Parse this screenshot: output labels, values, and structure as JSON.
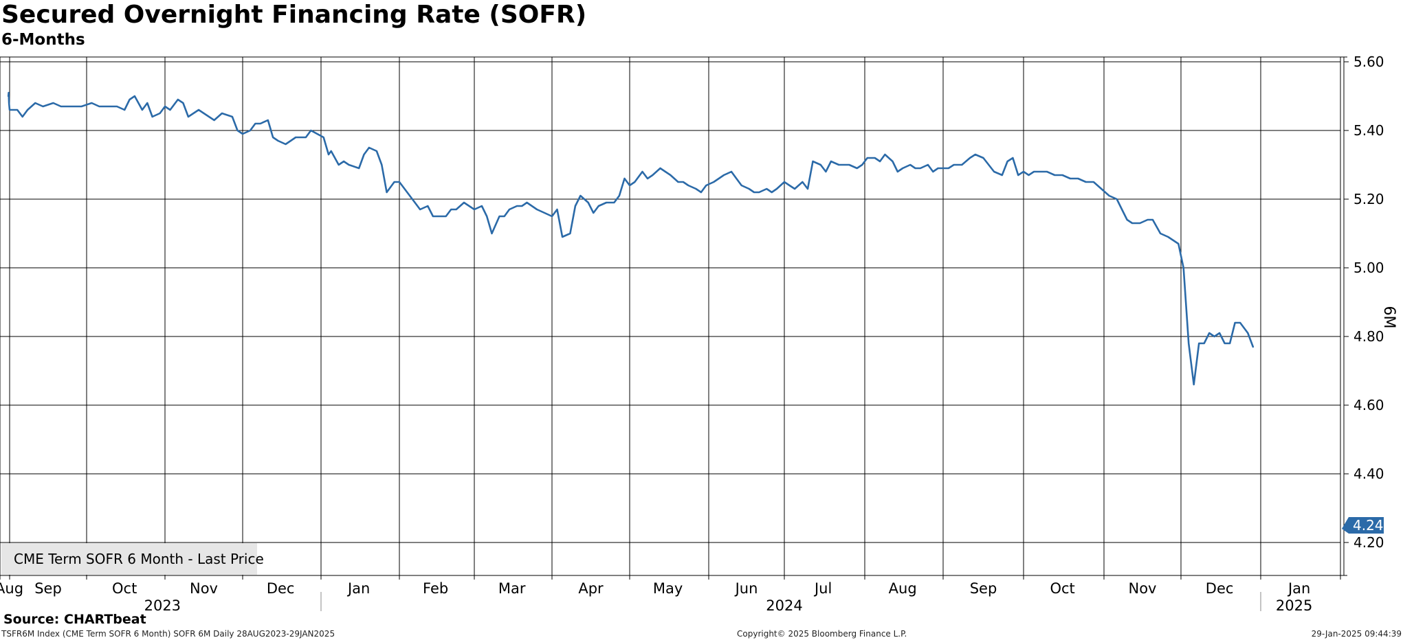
{
  "header": {
    "title": "Secured Overnight Financing Rate (SOFR)",
    "subtitle": "6-Months"
  },
  "legend": {
    "label": "CME Term SOFR 6 Month - Last Price",
    "color": "#2b6aa8"
  },
  "last_price_badge": "4.24",
  "footer": {
    "source": "Source: CHARTbeat",
    "index_info": "TSFR6M Index (CME Term SOFR 6 Month) SOFR 6M  Daily 28AUG2023-29JAN2025",
    "copyright": "Copyright© 2025 Bloomberg Finance L.P.",
    "timestamp": "29-Jan-2025 09:44:39"
  },
  "chart_data": {
    "type": "line",
    "title": "Secured Overnight Financing Rate (SOFR)",
    "subtitle": "6-Months",
    "ylabel": "6M",
    "ylim": [
      4.15,
      5.62
    ],
    "y_ticks": [
      "4.20",
      "4.40",
      "4.60",
      "4.80",
      "5.00",
      "5.20",
      "5.40",
      "5.60"
    ],
    "x_range": [
      "2023-08-28",
      "2025-01-29"
    ],
    "x_month_ticks": [
      "2023-08-01",
      "2023-09-01",
      "2023-10-01",
      "2023-11-01",
      "2023-12-01",
      "2024-01-01",
      "2024-02-01",
      "2024-03-01",
      "2024-04-01",
      "2024-05-01",
      "2024-06-01",
      "2024-07-01",
      "2024-08-01",
      "2024-09-01",
      "2024-10-01",
      "2024-11-01",
      "2024-12-01",
      "2025-01-01",
      "2025-02-01"
    ],
    "x_month_labels": [
      {
        "label": "Aug",
        "date": "2023-08-31"
      },
      {
        "label": "Sep",
        "date": "2023-09-16"
      },
      {
        "label": "Oct",
        "date": "2023-10-16"
      },
      {
        "label": "Nov",
        "date": "2023-11-16"
      },
      {
        "label": "Dec",
        "date": "2023-12-16"
      },
      {
        "label": "Jan",
        "date": "2024-01-16"
      },
      {
        "label": "Feb",
        "date": "2024-02-15"
      },
      {
        "label": "Mar",
        "date": "2024-03-16"
      },
      {
        "label": "Apr",
        "date": "2024-04-16"
      },
      {
        "label": "May",
        "date": "2024-05-16"
      },
      {
        "label": "Jun",
        "date": "2024-06-16"
      },
      {
        "label": "Jul",
        "date": "2024-07-16"
      },
      {
        "label": "Aug",
        "date": "2024-08-16"
      },
      {
        "label": "Sep",
        "date": "2024-09-16"
      },
      {
        "label": "Oct",
        "date": "2024-10-16"
      },
      {
        "label": "Nov",
        "date": "2024-11-16"
      },
      {
        "label": "Dec",
        "date": "2024-12-16"
      },
      {
        "label": "Jan",
        "date": "2025-01-16"
      }
    ],
    "year_labels": [
      {
        "label": "2023",
        "date": "2023-10-31"
      },
      {
        "label": "2024",
        "date": "2024-07-01"
      },
      {
        "label": "2025",
        "date": "2025-01-14"
      }
    ],
    "year_dividers": [
      "2024-01-01",
      "2025-01-01"
    ],
    "grid": true,
    "legend_position": "bottom-left",
    "series": [
      {
        "name": "CME Term SOFR 6 Month - Last Price",
        "color": "#2b6aa8",
        "points": [
          [
            "2023-08-28",
            5.5
          ],
          [
            "2023-08-29",
            5.51
          ],
          [
            "2023-08-30",
            5.48
          ],
          [
            "2023-09-01",
            5.46
          ],
          [
            "2023-09-04",
            5.46
          ],
          [
            "2023-09-06",
            5.44
          ],
          [
            "2023-09-08",
            5.46
          ],
          [
            "2023-09-11",
            5.48
          ],
          [
            "2023-09-14",
            5.47
          ],
          [
            "2023-09-18",
            5.48
          ],
          [
            "2023-09-21",
            5.47
          ],
          [
            "2023-09-25",
            5.47
          ],
          [
            "2023-09-29",
            5.47
          ],
          [
            "2023-10-03",
            5.48
          ],
          [
            "2023-10-06",
            5.47
          ],
          [
            "2023-10-10",
            5.47
          ],
          [
            "2023-10-13",
            5.47
          ],
          [
            "2023-10-16",
            5.46
          ],
          [
            "2023-10-18",
            5.49
          ],
          [
            "2023-10-20",
            5.5
          ],
          [
            "2023-10-23",
            5.46
          ],
          [
            "2023-10-25",
            5.48
          ],
          [
            "2023-10-27",
            5.44
          ],
          [
            "2023-10-30",
            5.45
          ],
          [
            "2023-11-01",
            5.47
          ],
          [
            "2023-11-03",
            5.46
          ],
          [
            "2023-11-06",
            5.49
          ],
          [
            "2023-11-08",
            5.48
          ],
          [
            "2023-11-10",
            5.44
          ],
          [
            "2023-11-14",
            5.46
          ],
          [
            "2023-11-16",
            5.45
          ],
          [
            "2023-11-20",
            5.43
          ],
          [
            "2023-11-23",
            5.45
          ],
          [
            "2023-11-27",
            5.44
          ],
          [
            "2023-11-29",
            5.4
          ],
          [
            "2023-12-01",
            5.39
          ],
          [
            "2023-12-04",
            5.4
          ],
          [
            "2023-12-06",
            5.42
          ],
          [
            "2023-12-08",
            5.42
          ],
          [
            "2023-12-11",
            5.43
          ],
          [
            "2023-12-13",
            5.38
          ],
          [
            "2023-12-15",
            5.37
          ],
          [
            "2023-12-18",
            5.36
          ],
          [
            "2023-12-20",
            5.37
          ],
          [
            "2023-12-22",
            5.38
          ],
          [
            "2023-12-26",
            5.38
          ],
          [
            "2023-12-28",
            5.4
          ],
          [
            "2024-01-02",
            5.38
          ],
          [
            "2024-01-04",
            5.33
          ],
          [
            "2024-01-05",
            5.34
          ],
          [
            "2024-01-08",
            5.3
          ],
          [
            "2024-01-10",
            5.31
          ],
          [
            "2024-01-12",
            5.3
          ],
          [
            "2024-01-16",
            5.29
          ],
          [
            "2024-01-18",
            5.33
          ],
          [
            "2024-01-20",
            5.35
          ],
          [
            "2024-01-23",
            5.34
          ],
          [
            "2024-01-25",
            5.3
          ],
          [
            "2024-01-27",
            5.22
          ],
          [
            "2024-01-30",
            5.25
          ],
          [
            "2024-02-01",
            5.25
          ],
          [
            "2024-02-04",
            5.22
          ],
          [
            "2024-02-07",
            5.19
          ],
          [
            "2024-02-09",
            5.17
          ],
          [
            "2024-02-12",
            5.18
          ],
          [
            "2024-02-14",
            5.15
          ],
          [
            "2024-02-16",
            5.15
          ],
          [
            "2024-02-19",
            5.15
          ],
          [
            "2024-02-21",
            5.17
          ],
          [
            "2024-02-23",
            5.17
          ],
          [
            "2024-02-26",
            5.19
          ],
          [
            "2024-02-28",
            5.18
          ],
          [
            "2024-03-01",
            5.17
          ],
          [
            "2024-03-04",
            5.18
          ],
          [
            "2024-03-06",
            5.15
          ],
          [
            "2024-03-08",
            5.1
          ],
          [
            "2024-03-11",
            5.15
          ],
          [
            "2024-03-13",
            5.15
          ],
          [
            "2024-03-15",
            5.17
          ],
          [
            "2024-03-18",
            5.18
          ],
          [
            "2024-03-20",
            5.18
          ],
          [
            "2024-03-22",
            5.19
          ],
          [
            "2024-03-26",
            5.17
          ],
          [
            "2024-03-29",
            5.16
          ],
          [
            "2024-04-01",
            5.15
          ],
          [
            "2024-04-03",
            5.17
          ],
          [
            "2024-04-05",
            5.09
          ],
          [
            "2024-04-08",
            5.1
          ],
          [
            "2024-04-10",
            5.18
          ],
          [
            "2024-04-12",
            5.21
          ],
          [
            "2024-04-15",
            5.19
          ],
          [
            "2024-04-17",
            5.16
          ],
          [
            "2024-04-19",
            5.18
          ],
          [
            "2024-04-22",
            5.19
          ],
          [
            "2024-04-25",
            5.19
          ],
          [
            "2024-04-27",
            5.21
          ],
          [
            "2024-04-29",
            5.26
          ],
          [
            "2024-05-01",
            5.24
          ],
          [
            "2024-05-03",
            5.25
          ],
          [
            "2024-05-06",
            5.28
          ],
          [
            "2024-05-08",
            5.26
          ],
          [
            "2024-05-10",
            5.27
          ],
          [
            "2024-05-13",
            5.29
          ],
          [
            "2024-05-15",
            5.28
          ],
          [
            "2024-05-17",
            5.27
          ],
          [
            "2024-05-20",
            5.25
          ],
          [
            "2024-05-22",
            5.25
          ],
          [
            "2024-05-24",
            5.24
          ],
          [
            "2024-05-27",
            5.23
          ],
          [
            "2024-05-29",
            5.22
          ],
          [
            "2024-05-31",
            5.24
          ],
          [
            "2024-06-03",
            5.25
          ],
          [
            "2024-06-05",
            5.26
          ],
          [
            "2024-06-07",
            5.27
          ],
          [
            "2024-06-10",
            5.28
          ],
          [
            "2024-06-12",
            5.26
          ],
          [
            "2024-06-14",
            5.24
          ],
          [
            "2024-06-17",
            5.23
          ],
          [
            "2024-06-19",
            5.22
          ],
          [
            "2024-06-21",
            5.22
          ],
          [
            "2024-06-24",
            5.23
          ],
          [
            "2024-06-26",
            5.22
          ],
          [
            "2024-06-28",
            5.23
          ],
          [
            "2024-07-01",
            5.25
          ],
          [
            "2024-07-03",
            5.24
          ],
          [
            "2024-07-05",
            5.23
          ],
          [
            "2024-07-08",
            5.25
          ],
          [
            "2024-07-10",
            5.23
          ],
          [
            "2024-07-12",
            5.31
          ],
          [
            "2024-07-15",
            5.3
          ],
          [
            "2024-07-17",
            5.28
          ],
          [
            "2024-07-19",
            5.31
          ],
          [
            "2024-07-22",
            5.3
          ],
          [
            "2024-07-24",
            5.3
          ],
          [
            "2024-07-26",
            5.3
          ],
          [
            "2024-07-29",
            5.29
          ],
          [
            "2024-07-31",
            5.3
          ],
          [
            "2024-08-02",
            5.32
          ],
          [
            "2024-08-05",
            5.32
          ],
          [
            "2024-08-07",
            5.31
          ],
          [
            "2024-08-09",
            5.33
          ],
          [
            "2024-08-12",
            5.31
          ],
          [
            "2024-08-14",
            5.28
          ],
          [
            "2024-08-16",
            5.29
          ],
          [
            "2024-08-19",
            5.3
          ],
          [
            "2024-08-21",
            5.29
          ],
          [
            "2024-08-23",
            5.29
          ],
          [
            "2024-08-26",
            5.3
          ],
          [
            "2024-08-28",
            5.28
          ],
          [
            "2024-08-30",
            5.29
          ],
          [
            "2024-09-03",
            5.29
          ],
          [
            "2024-09-05",
            5.3
          ],
          [
            "2024-09-08",
            5.3
          ],
          [
            "2024-09-11",
            5.32
          ],
          [
            "2024-09-13",
            5.33
          ],
          [
            "2024-09-16",
            5.32
          ],
          [
            "2024-09-18",
            5.3
          ],
          [
            "2024-09-20",
            5.28
          ],
          [
            "2024-09-23",
            5.27
          ],
          [
            "2024-09-25",
            5.31
          ],
          [
            "2024-09-27",
            5.32
          ],
          [
            "2024-09-29",
            5.27
          ],
          [
            "2024-10-01",
            5.28
          ],
          [
            "2024-10-03",
            5.27
          ],
          [
            "2024-10-05",
            5.28
          ],
          [
            "2024-10-07",
            5.28
          ],
          [
            "2024-10-10",
            5.28
          ],
          [
            "2024-10-13",
            5.27
          ],
          [
            "2024-10-16",
            5.27
          ],
          [
            "2024-10-19",
            5.26
          ],
          [
            "2024-10-22",
            5.26
          ],
          [
            "2024-10-25",
            5.25
          ],
          [
            "2024-10-28",
            5.25
          ],
          [
            "2024-10-31",
            5.23
          ],
          [
            "2024-11-03",
            5.21
          ],
          [
            "2024-11-06",
            5.2
          ],
          [
            "2024-11-08",
            5.17
          ],
          [
            "2024-11-10",
            5.14
          ],
          [
            "2024-11-12",
            5.13
          ],
          [
            "2024-11-15",
            5.13
          ],
          [
            "2024-11-18",
            5.14
          ],
          [
            "2024-11-20",
            5.14
          ],
          [
            "2024-11-23",
            5.1
          ],
          [
            "2024-11-26",
            5.09
          ],
          [
            "2024-11-28",
            5.08
          ],
          [
            "2024-11-30",
            5.07
          ],
          [
            "2024-12-02",
            5.0
          ],
          [
            "2024-12-04",
            4.78
          ],
          [
            "2024-12-06",
            4.66
          ],
          [
            "2024-12-08",
            4.78
          ],
          [
            "2024-12-10",
            4.78
          ],
          [
            "2024-12-12",
            4.81
          ],
          [
            "2024-12-14",
            4.8
          ],
          [
            "2024-12-16",
            4.81
          ],
          [
            "2024-12-18",
            4.78
          ],
          [
            "2024-12-20",
            4.78
          ],
          [
            "2024-12-22",
            4.84
          ],
          [
            "2024-12-24",
            4.84
          ],
          [
            "2024-12-27",
            4.81
          ],
          [
            "2024-12-29",
            4.77
          ]
        ]
      }
    ]
  }
}
